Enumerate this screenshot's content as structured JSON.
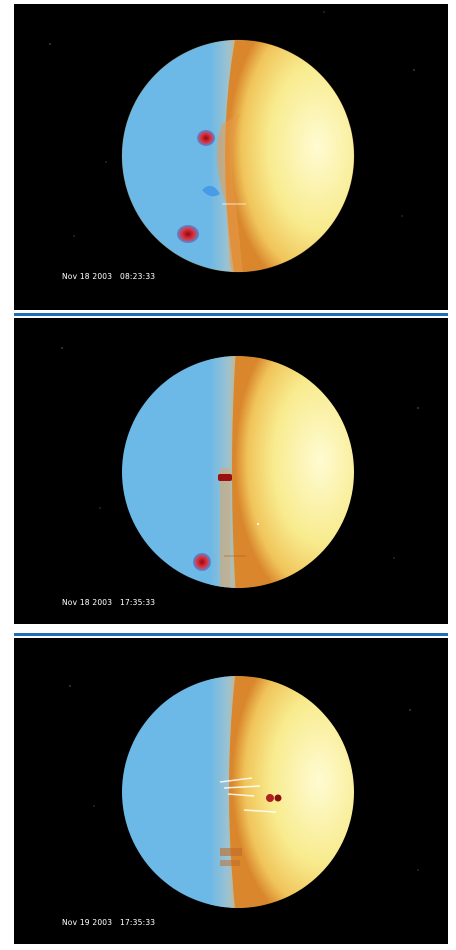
{
  "panels": [
    {
      "timestamp": "Nov 18 2003   08:23:33",
      "features": [
        "magnetic-spot-upper",
        "magnetic-spot-lower",
        "blue-patch"
      ]
    },
    {
      "timestamp": "Nov 18 2003   17:35:33",
      "features": [
        "limb-spot",
        "magnetic-spot-lower"
      ]
    },
    {
      "timestamp": "Nov 19 2003   17:35:33",
      "features": [
        "active-region",
        "flare-streaks"
      ]
    }
  ],
  "colors": {
    "background": "#000000",
    "divider": "#1d6fb8",
    "far_side": "#6cb8e6",
    "near_side": "#f7e98a",
    "spot_red": "#d42a2a"
  }
}
